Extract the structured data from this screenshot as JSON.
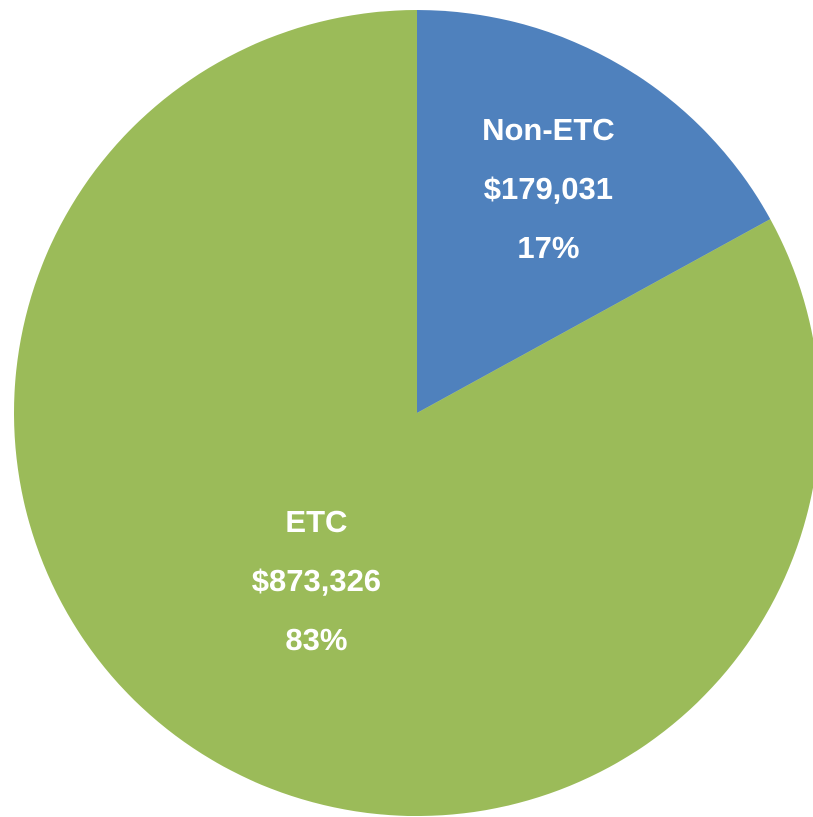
{
  "chart_data": {
    "type": "pie",
    "categories": [
      "Non-ETC",
      "ETC"
    ],
    "values": [
      179031,
      873326
    ],
    "value_labels": [
      "$179,031",
      "$873,326"
    ],
    "percents": [
      17,
      83
    ],
    "percent_labels": [
      "17%",
      "83%"
    ],
    "colors": [
      "#4f81bd",
      "#9bbb59"
    ]
  }
}
